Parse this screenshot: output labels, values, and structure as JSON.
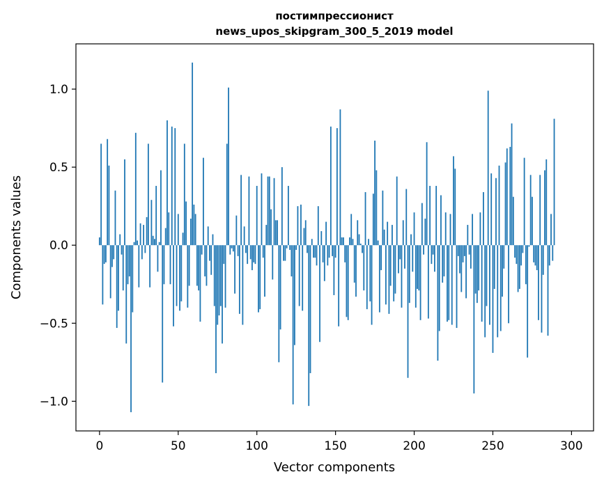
{
  "chart_data": {
    "type": "bar",
    "title": "постимпрессионист",
    "subtitle": "news_upos_skipgram_300_5_2019 model",
    "xlabel": "Vector components",
    "ylabel": "Components values",
    "xlim": [
      -15,
      314
    ],
    "ylim": [
      -1.19,
      1.29
    ],
    "x_ticks": [
      0,
      50,
      100,
      150,
      200,
      250,
      300
    ],
    "x_tick_labels": [
      "0",
      "50",
      "100",
      "150",
      "200",
      "250",
      "300"
    ],
    "y_ticks": [
      -1.0,
      -0.5,
      0.0,
      0.5,
      1.0
    ],
    "y_tick_labels": [
      "−1.0",
      "−0.5",
      "0.0",
      "0.5",
      "1.0"
    ],
    "grid": false,
    "bar_color": "#1f77b4",
    "series": [
      {
        "values": [
          0.05,
          0.65,
          -0.38,
          -0.12,
          -0.11,
          0.68,
          0.51,
          -0.34,
          -0.14,
          -0.09,
          0.35,
          -0.53,
          -0.42,
          0.07,
          -0.06,
          -0.29,
          0.55,
          -0.63,
          -0.25,
          -0.2,
          -1.07,
          -0.43,
          0.02,
          0.72,
          0.03,
          -0.27,
          0.14,
          -0.09,
          0.13,
          -0.05,
          0.18,
          0.65,
          -0.27,
          0.29,
          0.06,
          0.04,
          0.38,
          -0.17,
          0.02,
          0.48,
          -0.88,
          -0.25,
          0.11,
          0.8,
          0.21,
          -0.25,
          0.76,
          -0.52,
          0.75,
          -0.39,
          0.2,
          -0.42,
          -0.36,
          0.08,
          0.65,
          0.28,
          -0.4,
          -0.26,
          0.17,
          1.17,
          0.26,
          0.2,
          -0.26,
          -0.29,
          -0.49,
          -0.06,
          0.56,
          -0.2,
          -0.26,
          0.12,
          -0.1,
          -0.19,
          0.07,
          -0.39,
          -0.82,
          -0.51,
          -0.45,
          -0.39,
          -0.63,
          -0.12,
          -0.4,
          0.65,
          1.01,
          -0.06,
          -0.02,
          -0.04,
          -0.31,
          0.19,
          -0.07,
          -0.44,
          0.45,
          -0.51,
          0.12,
          -0.05,
          -0.12,
          0.44,
          -0.09,
          -0.16,
          -0.11,
          -0.12,
          0.38,
          -0.43,
          -0.41,
          0.46,
          -0.08,
          -0.33,
          0.13,
          0.44,
          0.44,
          0.23,
          -0.22,
          0.43,
          0.16,
          0.16,
          -0.75,
          -0.54,
          0.5,
          -0.1,
          -0.1,
          -0.02,
          0.38,
          -0.03,
          -0.2,
          -1.02,
          -0.64,
          -0.03,
          0.25,
          -0.39,
          0.26,
          -0.42,
          0.11,
          0.16,
          -0.05,
          -1.03,
          -0.82,
          0.04,
          -0.08,
          -0.08,
          -0.13,
          0.25,
          -0.62,
          0.09,
          -0.11,
          -0.23,
          0.15,
          -0.13,
          -0.08,
          0.76,
          -0.07,
          -0.32,
          -0.08,
          0.75,
          -0.52,
          0.87,
          0.05,
          0.05,
          -0.11,
          -0.46,
          -0.48,
          0.05,
          0.2,
          0.04,
          -0.24,
          -0.33,
          0.16,
          0.07,
          0.01,
          -0.05,
          -0.29,
          0.34,
          -0.41,
          0.04,
          -0.36,
          -0.51,
          0.33,
          0.67,
          0.48,
          0.03,
          -0.43,
          -0.16,
          0.35,
          0.1,
          -0.38,
          0.15,
          -0.44,
          -0.26,
          0.13,
          -0.36,
          -0.31,
          0.44,
          -0.18,
          -0.09,
          -0.4,
          0.16,
          -0.15,
          0.36,
          -0.85,
          -0.37,
          0.07,
          -0.17,
          0.21,
          -0.4,
          -0.28,
          -0.29,
          -0.48,
          0.27,
          -0.06,
          0.17,
          0.66,
          -0.47,
          0.38,
          -0.12,
          -0.06,
          -0.17,
          0.38,
          -0.74,
          -0.55,
          0.32,
          -0.24,
          -0.2,
          0.21,
          -0.49,
          -0.48,
          0.2,
          -0.51,
          0.57,
          0.49,
          -0.53,
          -0.07,
          -0.18,
          -0.3,
          -0.11,
          -0.07,
          -0.34,
          0.13,
          -0.06,
          -0.15,
          0.2,
          -0.95,
          -0.31,
          -0.37,
          -0.29,
          0.21,
          -0.49,
          0.34,
          -0.59,
          -0.39,
          0.99,
          -0.51,
          0.46,
          -0.69,
          -0.28,
          0.43,
          -0.59,
          0.51,
          -0.55,
          -0.33,
          -0.15,
          0.53,
          0.62,
          -0.5,
          0.63,
          0.78,
          0.31,
          -0.08,
          -0.12,
          -0.3,
          -0.28,
          -0.13,
          -0.05,
          0.56,
          -0.25,
          -0.72,
          -0.01,
          0.45,
          0.31,
          -0.11,
          -0.13,
          -0.16,
          -0.48,
          0.45,
          -0.56,
          -0.19,
          0.48,
          0.55,
          -0.58,
          -0.13,
          0.2,
          -0.1,
          0.81
        ]
      }
    ]
  }
}
